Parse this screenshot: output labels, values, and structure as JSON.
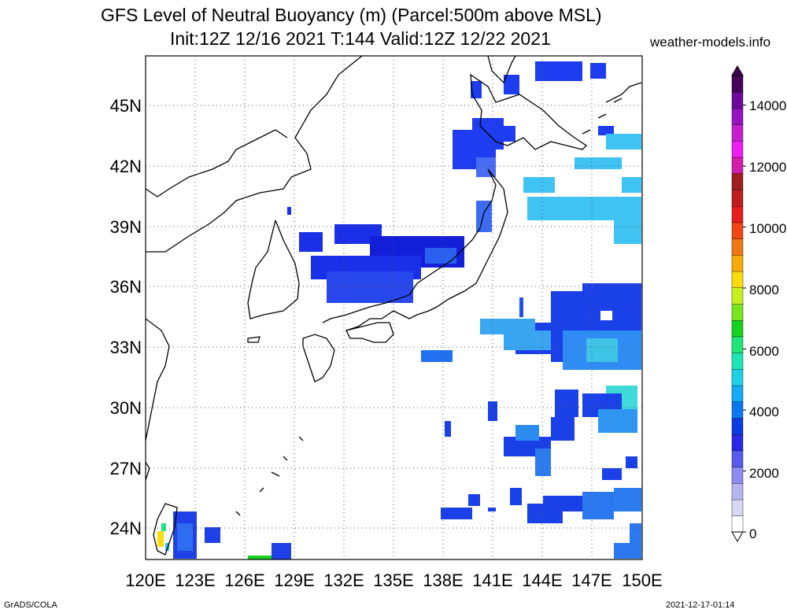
{
  "title": {
    "line1": "GFS Level of Neutral Buoyancy (m) (Parcel:500m above MSL)",
    "line2": "Init:12Z 12/16 2021 T:144 Valid:12Z 12/22 2021"
  },
  "credit": "weather-models.info",
  "footer": {
    "left": "GrADS/COLA",
    "right": "2021-12-17-01:14"
  },
  "axes": {
    "lat_labels": [
      "45N",
      "42N",
      "39N",
      "36N",
      "33N",
      "30N",
      "27N",
      "24N"
    ],
    "lon_labels": [
      "120E",
      "123E",
      "126E",
      "129E",
      "132E",
      "135E",
      "138E",
      "141E",
      "144E",
      "147E",
      "150E"
    ]
  },
  "colorbar": {
    "labels": [
      "0",
      "2000",
      "4000",
      "6000",
      "8000",
      "10000",
      "12000",
      "14000"
    ],
    "colors": [
      "#ffffff",
      "#d7d7f5",
      "#b4b4ee",
      "#8c8cf0",
      "#5a5aee",
      "#2828e6",
      "#0a3ce6",
      "#0a78f0",
      "#14aaf5",
      "#1ed2e6",
      "#1ee6b4",
      "#1ee678",
      "#14d21e",
      "#78e61e",
      "#c8f01e",
      "#fadc0a",
      "#faaa0a",
      "#f07814",
      "#f04614",
      "#e61e1e",
      "#be1e1e",
      "#a01e1e",
      "#d21eaa",
      "#f01ef0",
      "#c81ed2",
      "#9614be",
      "#6e0a9b",
      "#46005a"
    ]
  }
}
